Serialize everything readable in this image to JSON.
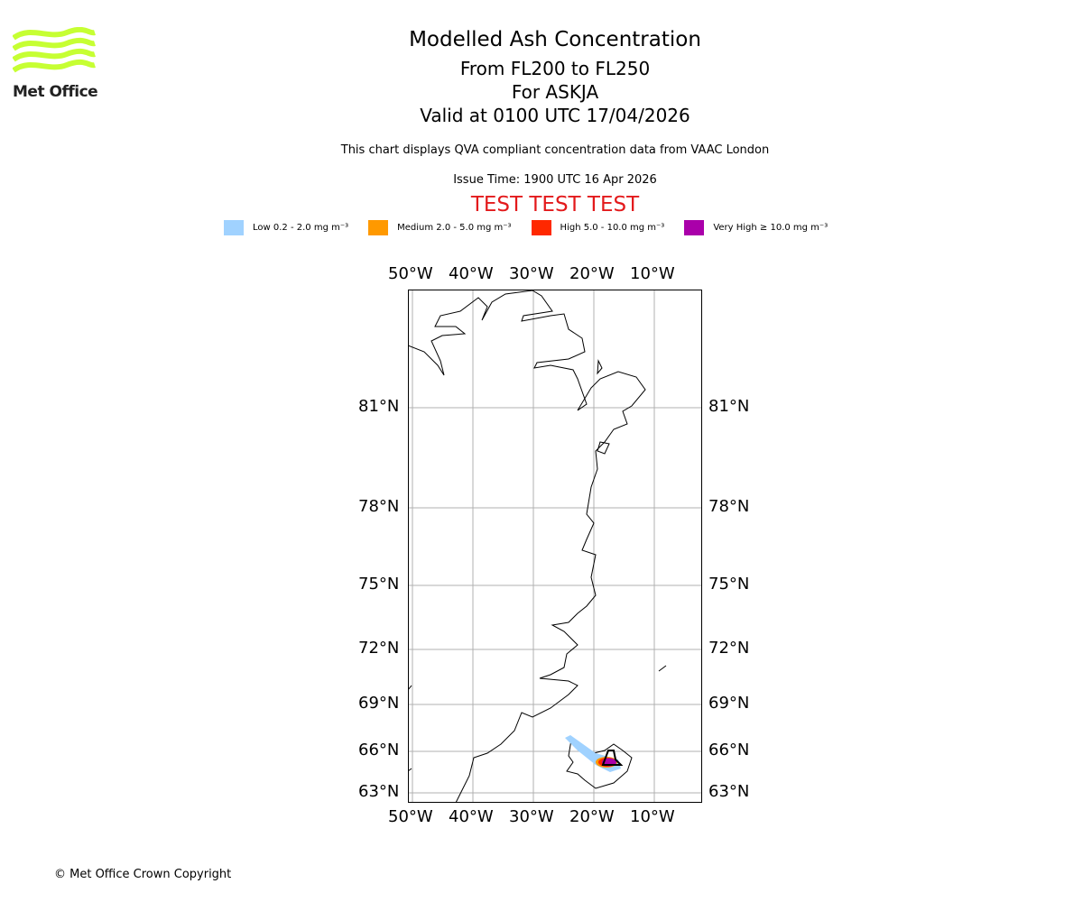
{
  "logo": {
    "text": "Met Office",
    "color": "#c6ff33"
  },
  "title": {
    "main": "Modelled Ash Concentration",
    "levels": "From FL200 to FL250",
    "volcano": "For ASKJA",
    "valid": "Valid at 0100 UTC 17/04/2026"
  },
  "description": "This chart displays QVA compliant concentration data from VAAC London",
  "issue_time": "Issue Time: 1900 UTC 16 Apr 2026",
  "test_banner": "TEST TEST TEST",
  "legend": [
    {
      "label": "Low 0.2 - 2.0 mg m⁻³",
      "color": "#a0d2ff"
    },
    {
      "label": "Medium 2.0 - 5.0 mg m⁻³",
      "color": "#ff9900"
    },
    {
      "label": "High 5.0 - 10.0 mg m⁻³",
      "color": "#ff2800"
    },
    {
      "label": "Very High ≥ 10.0 mg m⁻³",
      "color": "#aa00aa"
    }
  ],
  "map": {
    "lon_labels": [
      "50°W",
      "40°W",
      "30°W",
      "20°W",
      "10°W"
    ],
    "lat_labels": [
      "81°N",
      "78°N",
      "75°N",
      "72°N",
      "69°N",
      "66°N",
      "63°N"
    ]
  },
  "footer": "© Met Office Crown Copyright"
}
